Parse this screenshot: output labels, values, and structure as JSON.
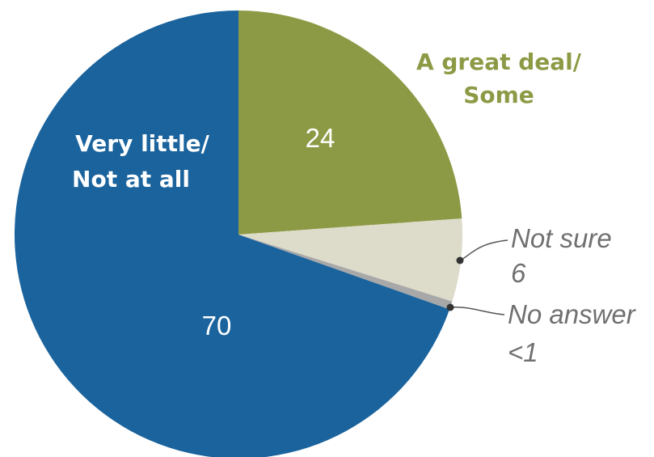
{
  "chart_data": {
    "type": "pie",
    "slices": [
      {
        "key": "great_deal",
        "label_lines": [
          "A great deal/",
          "Some"
        ],
        "value": 24,
        "value_label": "24",
        "color": "#8d9a45"
      },
      {
        "key": "not_sure",
        "label_lines": [
          "Not sure",
          "6"
        ],
        "value": 6,
        "value_label": "",
        "color": "#dddbc9"
      },
      {
        "key": "no_answer",
        "label_lines": [
          "No answer",
          "<1"
        ],
        "value": 0.6,
        "value_label": "",
        "color": "#a8a8a8"
      },
      {
        "key": "very_little",
        "label_lines": [
          "Very little/",
          "Not at all"
        ],
        "value": 70,
        "value_label": "70",
        "color": "#1a639d"
      }
    ]
  },
  "colors": {
    "great_deal_label": "#8d9a45",
    "very_little_label": "#ffffff",
    "small_label": "#707070"
  }
}
